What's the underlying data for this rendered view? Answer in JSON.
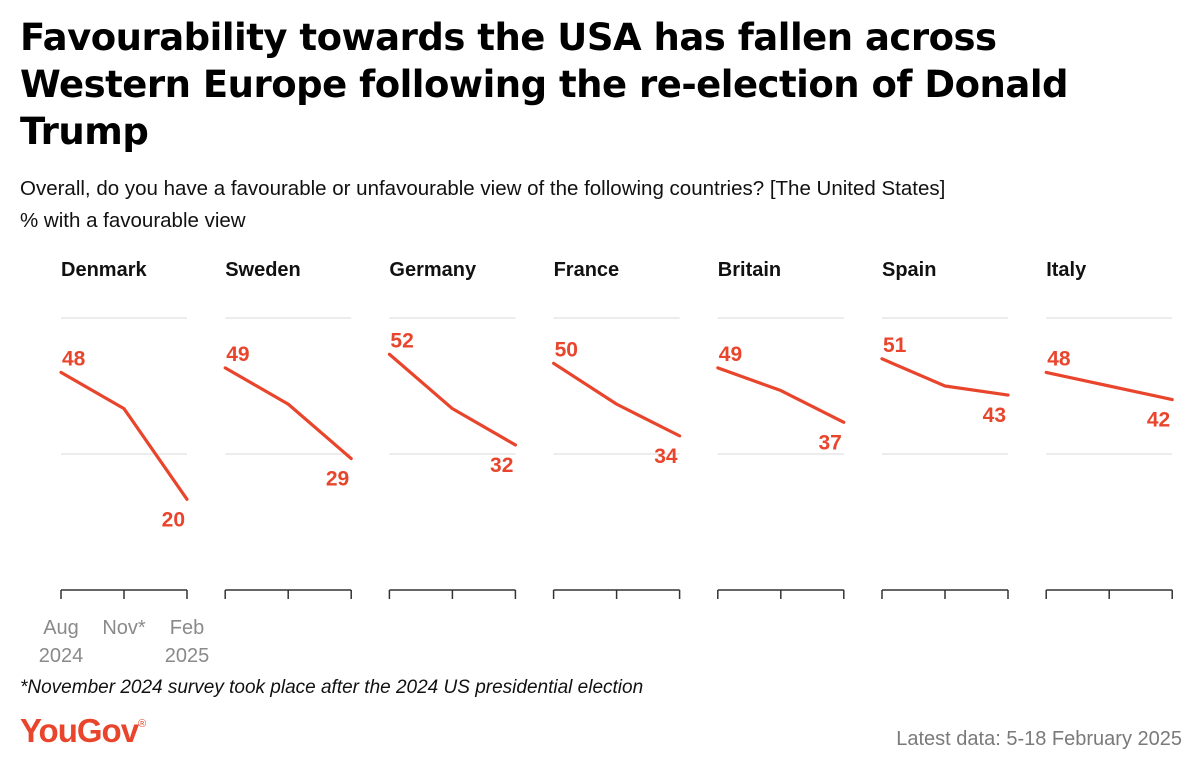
{
  "header": {
    "title": "Favourability towards the USA has fallen across Western Europe following the re-election of Donald Trump",
    "subtitle": "Overall, do you have a favourable or unfavourable view of the following countries? [The United States]",
    "measure": "% with a favourable view"
  },
  "footer": {
    "footnote": "*November 2024 survey took place after the 2024 US presidential election",
    "logo": "YouGov",
    "latest": "Latest data: 5-18 February 2025"
  },
  "colors": {
    "line": "#e8452c",
    "grid": "#d9d9d9",
    "axis": "#333333",
    "tick_label": "#8a8a8a"
  },
  "chart_data": {
    "type": "line",
    "x": [
      "Aug\n2024",
      "Nov*",
      "Feb\n2025"
    ],
    "ylim": [
      0,
      60
    ],
    "grid": true,
    "labelled_points": "first and last",
    "panels": [
      {
        "name": "Denmark",
        "values": [
          48,
          40,
          20
        ]
      },
      {
        "name": "Sweden",
        "values": [
          49,
          41,
          29
        ]
      },
      {
        "name": "Germany",
        "values": [
          52,
          40,
          32
        ]
      },
      {
        "name": "France",
        "values": [
          50,
          41,
          34
        ]
      },
      {
        "name": "Britain",
        "values": [
          49,
          44,
          37
        ]
      },
      {
        "name": "Spain",
        "values": [
          51,
          45,
          43
        ]
      },
      {
        "name": "Italy",
        "values": [
          48,
          45,
          42
        ]
      }
    ]
  }
}
